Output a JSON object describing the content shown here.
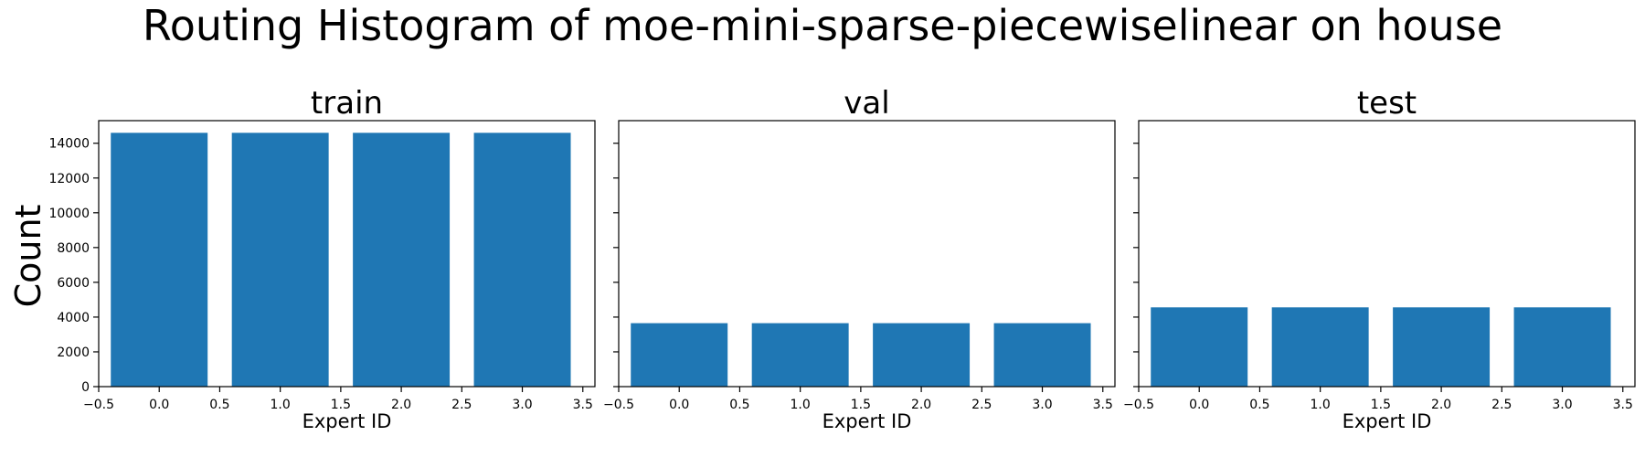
{
  "figure_title": "Routing Histogram of moe-mini-sparse-piecewiselinear on house",
  "ylabel": "Count",
  "bar_color": "#1f77b4",
  "chart_data": [
    {
      "type": "bar",
      "title": "train",
      "xlabel": "Expert ID",
      "categories": [
        0,
        1,
        2,
        3
      ],
      "values": [
        14600,
        14600,
        14600,
        14600
      ],
      "bar_width": 0.8,
      "xlim": [
        -0.5,
        3.6
      ],
      "ylim": [
        0,
        15300
      ],
      "xticks": [
        -0.5,
        0.0,
        0.5,
        1.0,
        1.5,
        2.0,
        2.5,
        3.0,
        3.5
      ],
      "xtick_labels": [
        "−0.5",
        "0.0",
        "0.5",
        "1.0",
        "1.5",
        "2.0",
        "2.5",
        "3.0",
        "3.5"
      ],
      "yticks": [
        0,
        2000,
        4000,
        6000,
        8000,
        10000,
        12000,
        14000
      ],
      "ytick_labels": [
        "0",
        "2000",
        "4000",
        "6000",
        "8000",
        "10000",
        "12000",
        "14000"
      ],
      "show_ytick_labels": true,
      "grid": false
    },
    {
      "type": "bar",
      "title": "val",
      "xlabel": "Expert ID",
      "categories": [
        0,
        1,
        2,
        3
      ],
      "values": [
        3650,
        3650,
        3650,
        3650
      ],
      "bar_width": 0.8,
      "xlim": [
        -0.5,
        3.6
      ],
      "ylim": [
        0,
        15300
      ],
      "xticks": [
        -0.5,
        0.0,
        0.5,
        1.0,
        1.5,
        2.0,
        2.5,
        3.0,
        3.5
      ],
      "xtick_labels": [
        "−0.5",
        "0.0",
        "0.5",
        "1.0",
        "1.5",
        "2.0",
        "2.5",
        "3.0",
        "3.5"
      ],
      "yticks": [
        0,
        2000,
        4000,
        6000,
        8000,
        10000,
        12000,
        14000
      ],
      "ytick_labels": [
        "0",
        "2000",
        "4000",
        "6000",
        "8000",
        "10000",
        "12000",
        "14000"
      ],
      "show_ytick_labels": false,
      "grid": false
    },
    {
      "type": "bar",
      "title": "test",
      "xlabel": "Expert ID",
      "categories": [
        0,
        1,
        2,
        3
      ],
      "values": [
        4560,
        4560,
        4560,
        4560
      ],
      "bar_width": 0.8,
      "xlim": [
        -0.5,
        3.6
      ],
      "ylim": [
        0,
        15300
      ],
      "xticks": [
        -0.5,
        0.0,
        0.5,
        1.0,
        1.5,
        2.0,
        2.5,
        3.0,
        3.5
      ],
      "xtick_labels": [
        "−0.5",
        "0.0",
        "0.5",
        "1.0",
        "1.5",
        "2.0",
        "2.5",
        "3.0",
        "3.5"
      ],
      "yticks": [
        0,
        2000,
        4000,
        6000,
        8000,
        10000,
        12000,
        14000
      ],
      "ytick_labels": [
        "0",
        "2000",
        "4000",
        "6000",
        "8000",
        "10000",
        "12000",
        "14000"
      ],
      "show_ytick_labels": false,
      "grid": false
    }
  ]
}
